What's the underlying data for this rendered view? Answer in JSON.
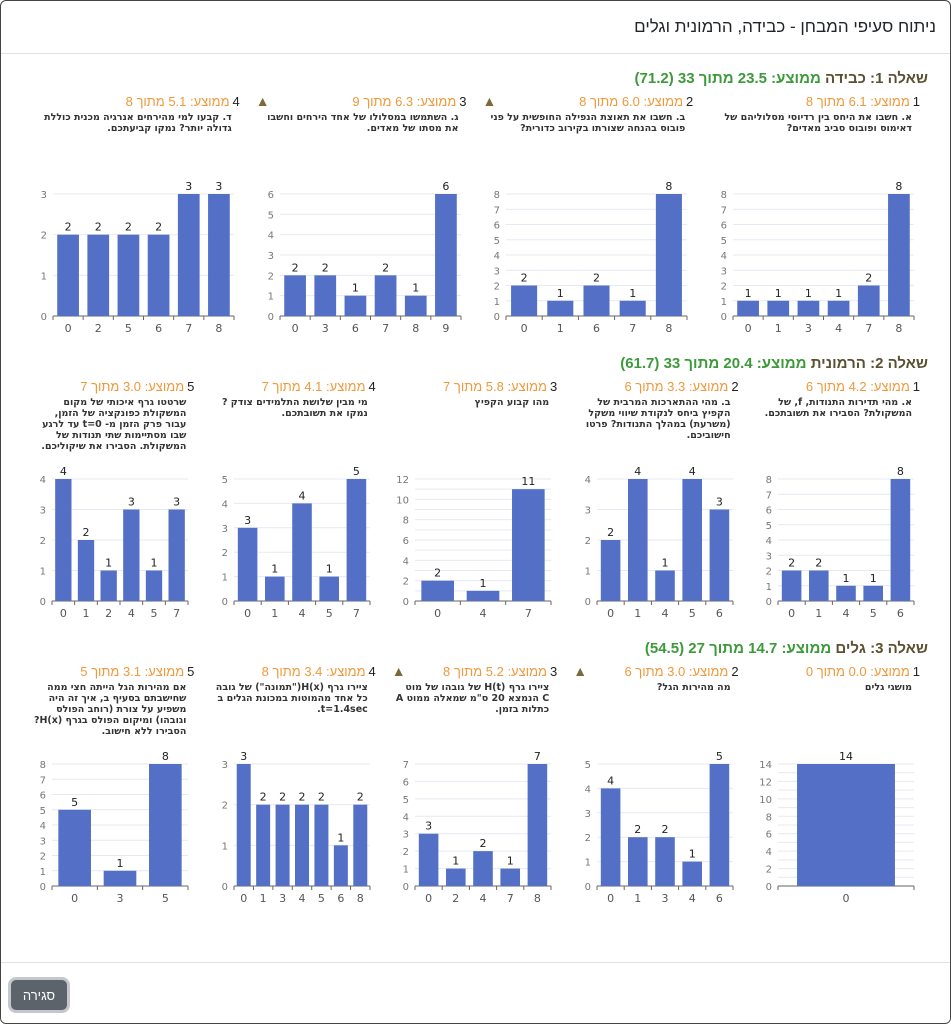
{
  "modal": {
    "title": "ניתוח סעיפי המבחן - כבידה, הרמונית וגלים",
    "close_label": "סגירה"
  },
  "colors": {
    "bar": "#5470c6",
    "score": "#3d9a3a",
    "item_avg": "#f0983a",
    "warning": "#7a6a3a"
  },
  "questions": [
    {
      "name": "שאלה 1: כבידה",
      "score": "ממוצע: 23.5 מתוך 33 (71.2)",
      "items": [
        {
          "num": "1",
          "avg": "ממוצע: 6.1 מתוך 8",
          "warning": false,
          "text": "א. חשבו את היחס בין רדיוסי מסלוליהם של דאימוס ופובוס סביב מאדים?",
          "chart": {
            "categories": [
              "0",
              "1",
              "3",
              "4",
              "7",
              "8"
            ],
            "values": [
              1,
              1,
              1,
              1,
              2,
              8
            ],
            "ymax": 8
          }
        },
        {
          "num": "2",
          "avg": "ממוצע: 6.0 מתוך 8",
          "warning": true,
          "text": "ב. חשבו את תאוצת הנפילה החופשית על פני פובוס בהנחה שצורתו בקירוב כדורית?",
          "chart": {
            "categories": [
              "0",
              "1",
              "6",
              "7",
              "8"
            ],
            "values": [
              2,
              1,
              2,
              1,
              8
            ],
            "ymax": 8
          }
        },
        {
          "num": "3",
          "avg": "ממוצע: 6.3 מתוך 9",
          "warning": true,
          "text": "ג. השתמשו במסלולו של אחד הירחים וחשבו את מסתו של מאדים.",
          "chart": {
            "categories": [
              "0",
              "3",
              "6",
              "7",
              "8",
              "9"
            ],
            "values": [
              2,
              2,
              1,
              2,
              1,
              6
            ],
            "ymax": 6
          }
        },
        {
          "num": "4",
          "avg": "ממוצע: 5.1 מתוך 8",
          "warning": false,
          "text": "ד. קבעו למי מהירחים אנרגיה מכנית כוללת גדולה יותר? נמקו קביעתכם.",
          "chart": {
            "categories": [
              "0",
              "2",
              "5",
              "6",
              "7",
              "8"
            ],
            "values": [
              2,
              2,
              2,
              2,
              3,
              3
            ],
            "ymax": 3
          }
        }
      ]
    },
    {
      "name": "שאלה 2: הרמונית",
      "score": "ממוצע: 20.4 מתוך 33 (61.7)",
      "items": [
        {
          "num": "1",
          "avg": "ממוצע: 4.2 מתוך 6",
          "warning": false,
          "text": "א. מהי תדירות התנודות, f, של המשקולת? הסבירו את תשובתכם.",
          "chart": {
            "categories": [
              "0",
              "1",
              "4",
              "5",
              "6"
            ],
            "values": [
              2,
              2,
              1,
              1,
              8
            ],
            "ymax": 8
          }
        },
        {
          "num": "2",
          "avg": "ממוצע: 3.3 מתוך 6",
          "warning": false,
          "text": "ב. מהי ההתארכות המרבית של הקפיץ ביחס לנקודת שיווי משקל (משרעת) במהלך התנודות? פרטו חישוביכם.",
          "chart": {
            "categories": [
              "0",
              "1",
              "4",
              "5",
              "6"
            ],
            "values": [
              2,
              4,
              1,
              4,
              3
            ],
            "ymax": 4
          }
        },
        {
          "num": "3",
          "avg": "ממוצע: 5.8 מתוך 7",
          "warning": false,
          "text": "מהו קבוע הקפיץ",
          "chart": {
            "categories": [
              "0",
              "4",
              "7"
            ],
            "values": [
              2,
              1,
              11
            ],
            "ymax": 12
          }
        },
        {
          "num": "4",
          "avg": "ממוצע: 4.1 מתוך 7",
          "warning": false,
          "text": "מי מבין שלושת התלמידים צודק ? נמקו את תשובתכם.",
          "chart": {
            "categories": [
              "0",
              "1",
              "4",
              "5",
              "7"
            ],
            "values": [
              3,
              1,
              4,
              1,
              5
            ],
            "ymax": 5
          }
        },
        {
          "num": "5",
          "avg": "ממוצע: 3.0 מתוך 7",
          "warning": false,
          "text": "שרטטו גרף איכותי של מקום המשקולת כפונקציה של הזמן, עבור פרק הזמן מ- t=0 עד לרגע שבו מסתיימות שתי תנודות של המשקולת. הסבירו את שיקוליכם.",
          "chart": {
            "categories": [
              "0",
              "1",
              "2",
              "4",
              "5",
              "7"
            ],
            "values": [
              4,
              2,
              1,
              3,
              1,
              3
            ],
            "ymax": 4
          }
        }
      ]
    },
    {
      "name": "שאלה 3: גלים",
      "score": "ממוצע: 14.7 מתוך 27 (54.5)",
      "items": [
        {
          "num": "1",
          "avg": "ממוצע: 0.0 מתוך 0",
          "warning": false,
          "text": "מושגי גלים",
          "chart": {
            "categories": [
              "0"
            ],
            "values": [
              14
            ],
            "ymax": 14
          }
        },
        {
          "num": "2",
          "avg": "ממוצע: 3.0 מתוך 6",
          "warning": true,
          "text": "מה מהירות הגל?",
          "chart": {
            "categories": [
              "0",
              "1",
              "3",
              "4",
              "6"
            ],
            "values": [
              4,
              2,
              2,
              1,
              5
            ],
            "ymax": 5
          }
        },
        {
          "num": "3",
          "avg": "ממוצע: 5.2 מתוך 8",
          "warning": true,
          "text": "ציירו גרף H(t) של גובהו של מוט C הנמצא 20 ס\"מ שמאלה ממוט A כתלות בזמן.",
          "chart": {
            "categories": [
              "0",
              "2",
              "4",
              "7",
              "8"
            ],
            "values": [
              3,
              1,
              2,
              1,
              7
            ],
            "ymax": 7
          }
        },
        {
          "num": "4",
          "avg": "ממוצע: 3.4 מתוך 8",
          "warning": false,
          "text": "ציירו גרף H(x)(\"תמונה\") של גובה כל אחד מהמוטות במכונת הגלים ב t=1.4sec.",
          "chart": {
            "categories": [
              "0",
              "1",
              "3",
              "4",
              "5",
              "6",
              "8"
            ],
            "values": [
              3,
              2,
              2,
              2,
              2,
              1,
              2
            ],
            "ymax": 3
          }
        },
        {
          "num": "5",
          "avg": "ממוצע: 3.1 מתוך 5",
          "warning": false,
          "text": "אם מהירות הגל הייתה חצי ממה שחישבתם בסעיף ב, איך זה היה משפיע על צורת (רוחב הפולס וגובהו) ומיקום הפולס בגרף H(x)? הסבירו ללא חישוב.",
          "chart": {
            "categories": [
              "0",
              "3",
              "5"
            ],
            "values": [
              5,
              1,
              8
            ],
            "ymax": 8
          }
        }
      ]
    }
  ]
}
